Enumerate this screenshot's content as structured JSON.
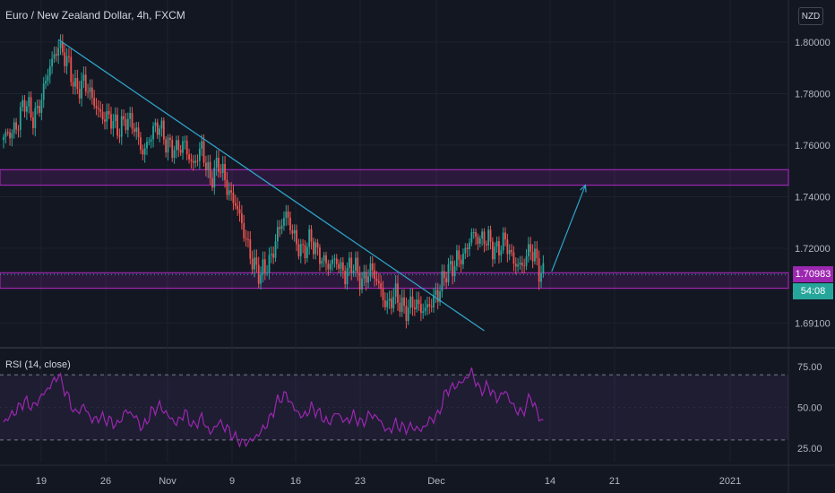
{
  "title": "Euro / New Zealand Dollar, 4h, FXCM",
  "currency": "NZD",
  "last_price": "1.70983",
  "countdown": "54:08",
  "partial_label": "1",
  "colors": {
    "background": "#131722",
    "up": "#26a69a",
    "down": "#ef5350",
    "zone": "#9c27b0",
    "trendline": "#2ea3c9",
    "rsi_line": "#9c27b0",
    "price_tag": "#9c27b0",
    "countdown_tag": "#26a69a"
  },
  "rsi_label": "RSI (14, close)",
  "chart_data": [
    {
      "type": "candlestick",
      "title": "Euro / New Zealand Dollar, 4h, FXCM",
      "ylim": [
        1.684,
        1.808
      ],
      "y_ticks": [
        1.8,
        1.78,
        1.76,
        1.74,
        1.72,
        1.691
      ],
      "y_tick_labels": [
        "1.80000",
        "1.78000",
        "1.76000",
        "1.74000",
        "1.72000",
        "1.69100"
      ],
      "x_ticks": [
        "19",
        "26",
        "Nov",
        "9",
        "16",
        "23",
        "Dec",
        "14",
        "21",
        "2021"
      ],
      "close_path": [
        [
          0,
          1.762
        ],
        [
          6,
          1.768
        ],
        [
          10,
          1.776
        ],
        [
          14,
          1.771
        ],
        [
          18,
          1.778
        ],
        [
          22,
          1.79
        ],
        [
          26,
          1.8
        ],
        [
          30,
          1.792
        ],
        [
          34,
          1.782
        ],
        [
          38,
          1.785
        ],
        [
          42,
          1.777
        ],
        [
          46,
          1.773
        ],
        [
          50,
          1.77
        ],
        [
          54,
          1.766
        ],
        [
          58,
          1.771
        ],
        [
          62,
          1.766
        ],
        [
          66,
          1.758
        ],
        [
          70,
          1.764
        ],
        [
          74,
          1.767
        ],
        [
          78,
          1.761
        ],
        [
          82,
          1.757
        ],
        [
          86,
          1.761
        ],
        [
          90,
          1.752
        ],
        [
          94,
          1.758
        ],
        [
          98,
          1.748
        ],
        [
          102,
          1.752
        ],
        [
          106,
          1.744
        ],
        [
          110,
          1.738
        ],
        [
          114,
          1.725
        ],
        [
          118,
          1.716
        ],
        [
          122,
          1.709
        ],
        [
          126,
          1.714
        ],
        [
          130,
          1.727
        ],
        [
          134,
          1.732
        ],
        [
          138,
          1.725
        ],
        [
          142,
          1.718
        ],
        [
          146,
          1.723
        ],
        [
          150,
          1.718
        ],
        [
          154,
          1.712
        ],
        [
          158,
          1.716
        ],
        [
          162,
          1.71
        ],
        [
          166,
          1.713
        ],
        [
          170,
          1.708
        ],
        [
          174,
          1.711
        ],
        [
          178,
          1.706
        ],
        [
          182,
          1.698
        ],
        [
          186,
          1.701
        ],
        [
          190,
          1.697
        ],
        [
          194,
          1.698
        ],
        [
          198,
          1.696
        ],
        [
          202,
          1.699
        ],
        [
          206,
          1.701
        ],
        [
          210,
          1.712
        ],
        [
          214,
          1.714
        ],
        [
          218,
          1.716
        ],
        [
          222,
          1.727
        ],
        [
          226,
          1.722
        ],
        [
          230,
          1.724
        ],
        [
          234,
          1.719
        ],
        [
          238,
          1.722
        ],
        [
          242,
          1.716
        ],
        [
          246,
          1.712
        ],
        [
          250,
          1.72
        ],
        [
          252,
          1.718
        ],
        [
          254,
          1.712
        ],
        [
          256,
          1.709
        ]
      ],
      "horizontal_zones": [
        {
          "from": 1.7445,
          "to": 1.7505,
          "color": "#9c27b0"
        },
        {
          "from": 1.7045,
          "to": 1.7105,
          "color": "#9c27b0"
        }
      ],
      "trendline": {
        "from": [
          26,
          1.801
        ],
        "to": [
          228,
          1.688
        ]
      },
      "projection_arrow": {
        "from": [
          260,
          1.711
        ],
        "to": [
          276,
          1.7445
        ]
      },
      "last_price_line": 1.70983
    },
    {
      "type": "line",
      "title": "RSI (14, close)",
      "ylim": [
        18,
        82
      ],
      "y_ticks": [
        75.0,
        50.0,
        25.0
      ],
      "y_tick_labels": [
        "75.00",
        "50.00",
        "25.00"
      ],
      "band": [
        30,
        70
      ],
      "series": [
        {
          "name": "RSI (14, close)",
          "x": [
            0,
            6,
            10,
            14,
            18,
            22,
            26,
            30,
            34,
            38,
            42,
            46,
            50,
            54,
            58,
            62,
            66,
            70,
            74,
            78,
            82,
            86,
            90,
            94,
            98,
            102,
            106,
            110,
            114,
            118,
            122,
            126,
            130,
            134,
            138,
            142,
            146,
            150,
            154,
            158,
            162,
            166,
            170,
            174,
            178,
            182,
            186,
            190,
            194,
            198,
            202,
            206,
            210,
            214,
            218,
            222,
            226,
            230,
            234,
            238,
            242,
            246,
            250,
            254,
            256
          ],
          "values": [
            41,
            48,
            54,
            50,
            57,
            63,
            70,
            58,
            46,
            51,
            42,
            44,
            42,
            39,
            48,
            45,
            37,
            47,
            51,
            45,
            40,
            47,
            38,
            44,
            34,
            41,
            37,
            31,
            28,
            30,
            35,
            42,
            54,
            58,
            49,
            44,
            50,
            46,
            40,
            47,
            41,
            45,
            40,
            46,
            43,
            35,
            40,
            37,
            38,
            36,
            42,
            45,
            60,
            63,
            66,
            72,
            60,
            63,
            55,
            60,
            50,
            46,
            57,
            44,
            41
          ]
        }
      ]
    }
  ]
}
